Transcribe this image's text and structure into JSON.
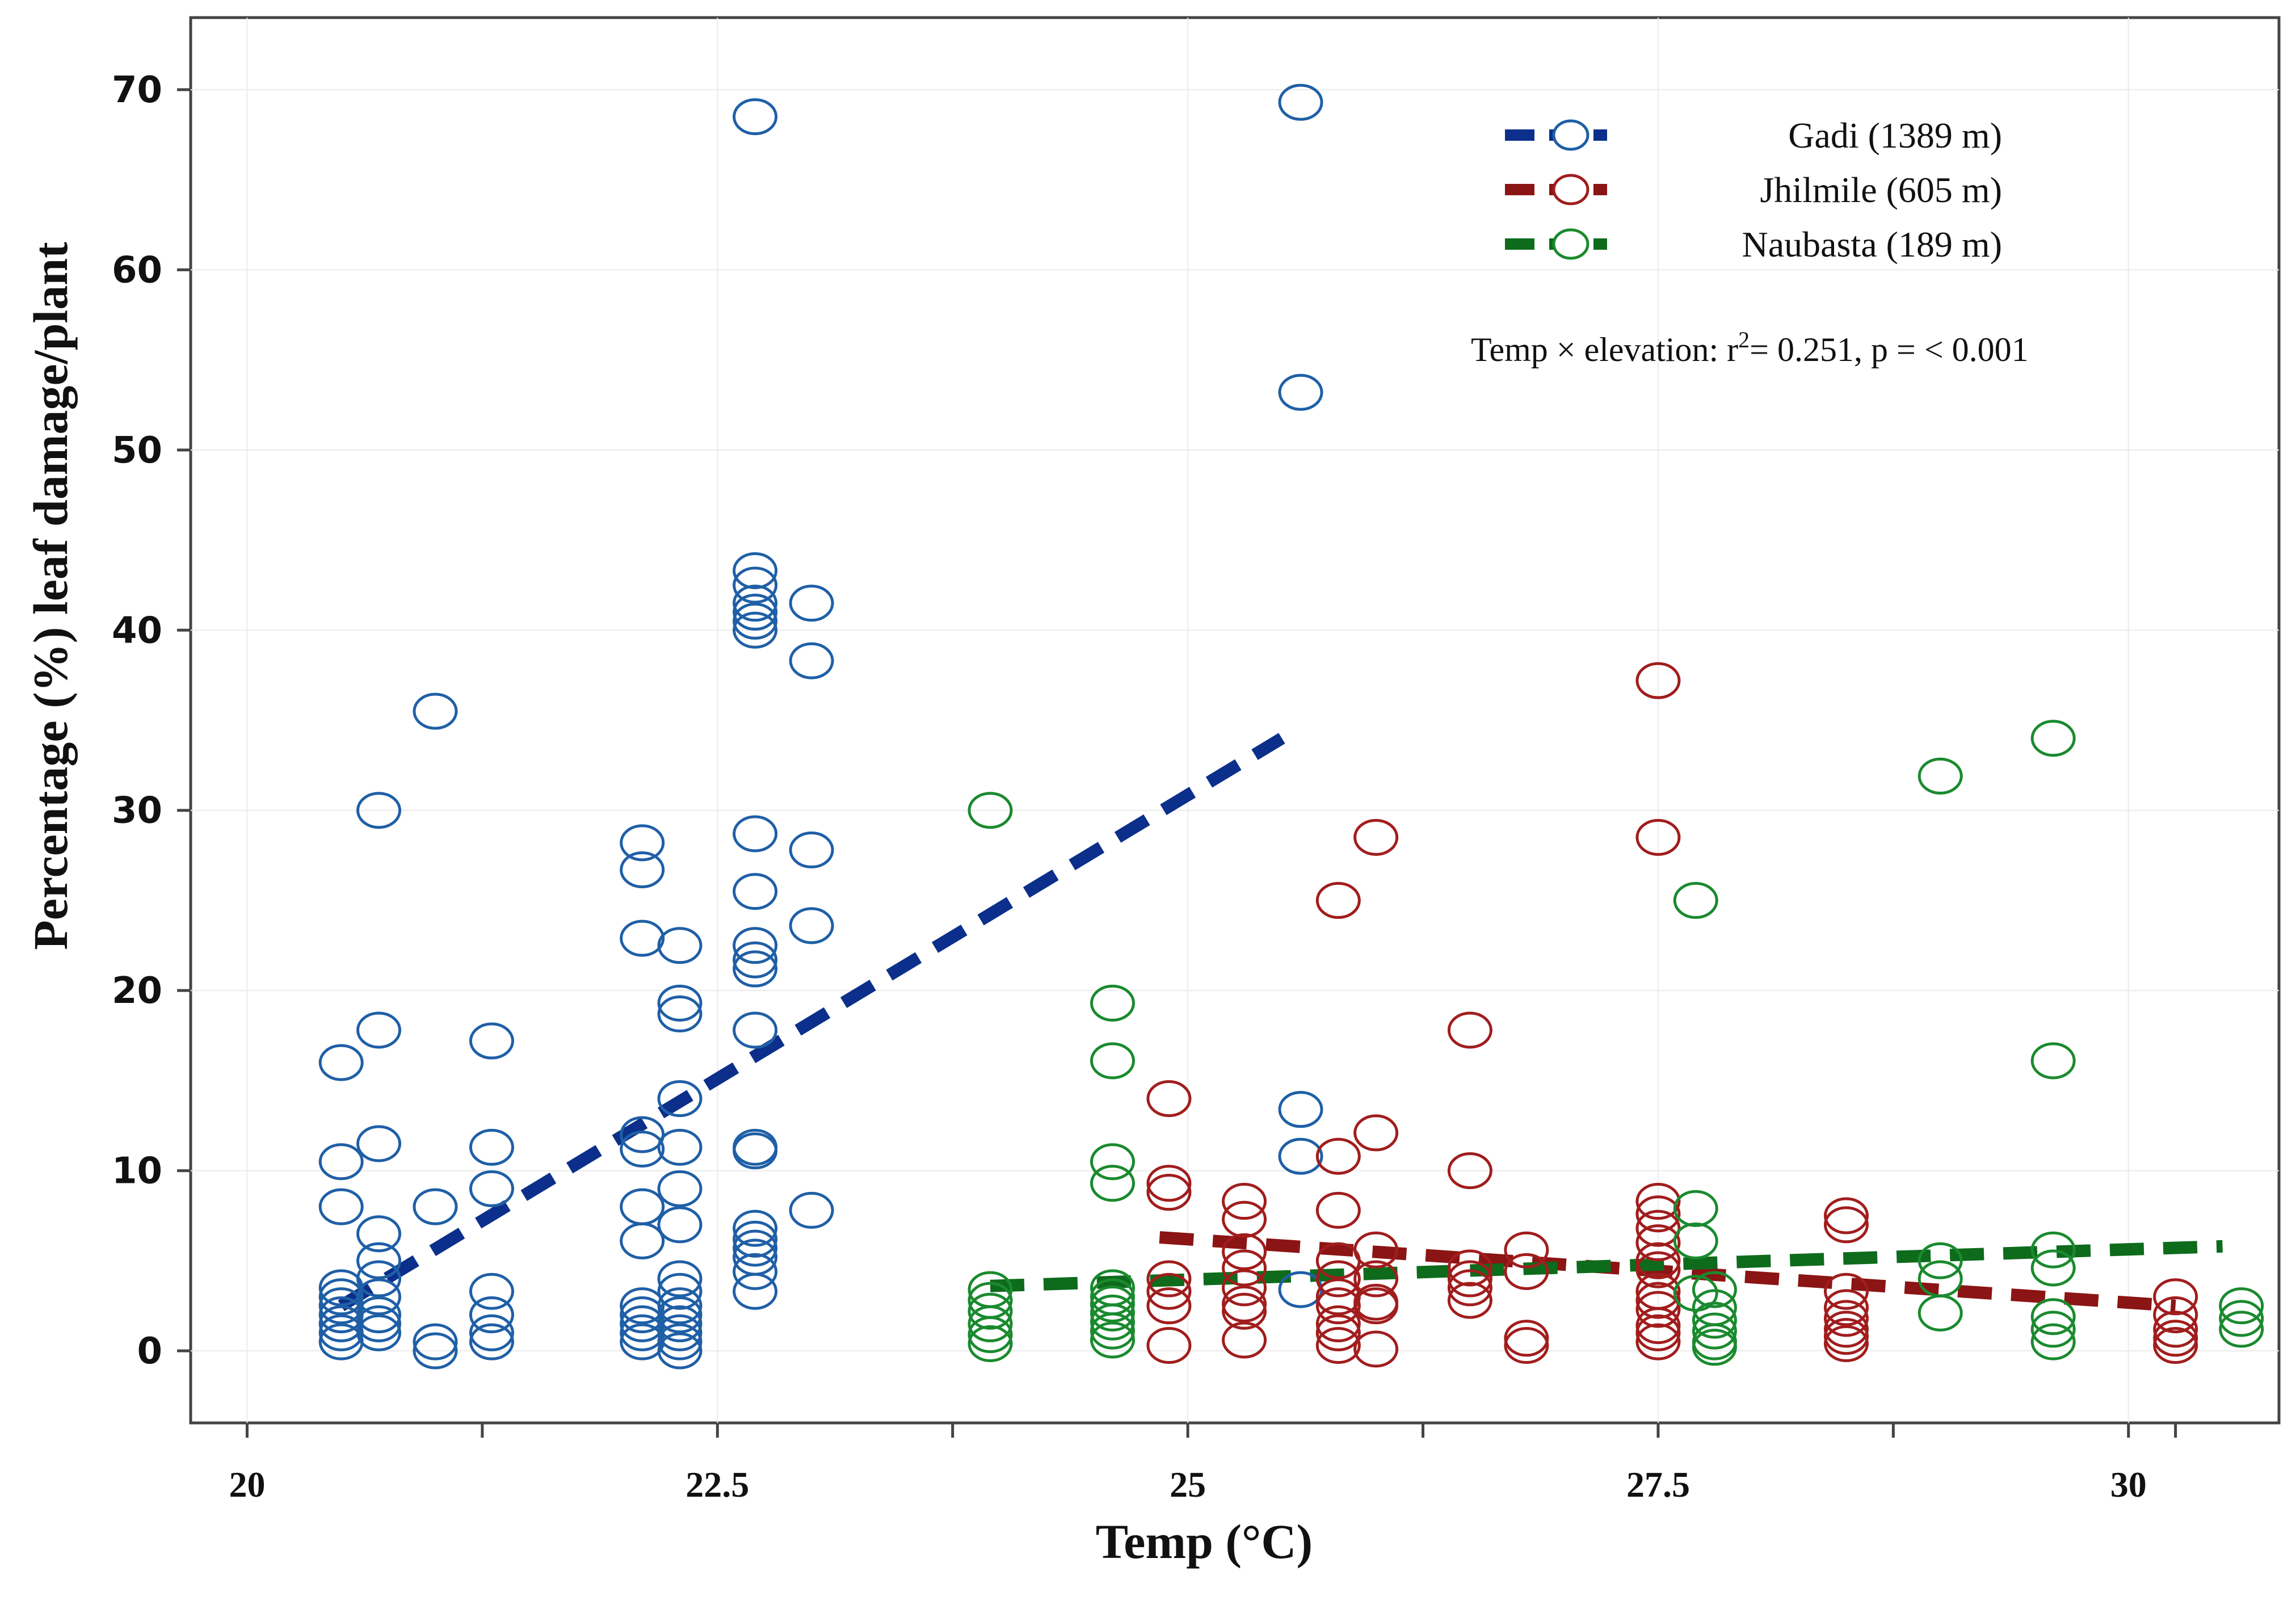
{
  "chart_data": {
    "type": "scatter",
    "xlabel": "Temp (°C)",
    "ylabel": "Percentage (%) leaf damage/plant",
    "xlim": [
      19.7,
      30.8
    ],
    "ylim": [
      -4,
      74
    ],
    "x_ticks": [
      20,
      22.5,
      25,
      27.5,
      30
    ],
    "x_tick_labels": [
      "20",
      "22.5",
      "25",
      "27.5",
      "30"
    ],
    "x_minor_ticks": [
      21.25,
      23.75,
      26.25,
      28.75,
      30.25
    ],
    "y_ticks": [
      0,
      10,
      20,
      30,
      40,
      50,
      60,
      70
    ],
    "y_tick_labels": [
      "0",
      "10",
      "20",
      "30",
      "40",
      "50",
      "60",
      "70"
    ],
    "legend_position": "top-right",
    "annotation": "Temp × elevation: r²= 0.251, p = < 0.001",
    "series": [
      {
        "name": "Gadi (1389 m)",
        "color": "#1f5fa6",
        "line_color": "#0b2f8a",
        "trend": {
          "x": [
            20.5,
            25.5
          ],
          "y": [
            2.5,
            34
          ]
        },
        "points": [
          [
            20.5,
            16
          ],
          [
            20.5,
            10.5
          ],
          [
            20.5,
            8
          ],
          [
            20.5,
            3.5
          ],
          [
            20.5,
            3
          ],
          [
            20.5,
            2.5
          ],
          [
            20.5,
            2
          ],
          [
            20.5,
            1.5
          ],
          [
            20.5,
            1
          ],
          [
            20.5,
            0.5
          ],
          [
            20.7,
            30
          ],
          [
            20.7,
            17.8
          ],
          [
            20.7,
            11.5
          ],
          [
            20.7,
            6.5
          ],
          [
            20.7,
            5
          ],
          [
            20.7,
            4
          ],
          [
            20.7,
            3
          ],
          [
            20.7,
            2
          ],
          [
            20.7,
            1.5
          ],
          [
            20.7,
            1
          ],
          [
            21.0,
            35.5
          ],
          [
            21.0,
            8
          ],
          [
            21.0,
            0.5
          ],
          [
            21.0,
            0
          ],
          [
            21.3,
            17.2
          ],
          [
            21.3,
            11.3
          ],
          [
            21.3,
            9
          ],
          [
            21.3,
            3.3
          ],
          [
            21.3,
            2
          ],
          [
            21.3,
            1
          ],
          [
            21.3,
            0.5
          ],
          [
            22.1,
            28.2
          ],
          [
            22.1,
            26.7
          ],
          [
            22.1,
            22.9
          ],
          [
            22.1,
            12
          ],
          [
            22.1,
            11.2
          ],
          [
            22.1,
            8
          ],
          [
            22.1,
            6.1
          ],
          [
            22.1,
            2.5
          ],
          [
            22.1,
            2
          ],
          [
            22.1,
            1.5
          ],
          [
            22.1,
            1
          ],
          [
            22.1,
            0.5
          ],
          [
            22.3,
            22.5
          ],
          [
            22.3,
            19.3
          ],
          [
            22.3,
            18.7
          ],
          [
            22.3,
            14
          ],
          [
            22.3,
            11.3
          ],
          [
            22.3,
            9
          ],
          [
            22.3,
            7
          ],
          [
            22.3,
            4
          ],
          [
            22.3,
            3.3
          ],
          [
            22.3,
            2.5
          ],
          [
            22.3,
            2
          ],
          [
            22.3,
            1.5
          ],
          [
            22.3,
            1
          ],
          [
            22.3,
            0.5
          ],
          [
            22.3,
            0
          ],
          [
            22.7,
            68.5
          ],
          [
            22.7,
            43.3
          ],
          [
            22.7,
            42.5
          ],
          [
            22.7,
            41.5
          ],
          [
            22.7,
            41
          ],
          [
            22.7,
            40.5
          ],
          [
            22.7,
            40
          ],
          [
            22.7,
            28.7
          ],
          [
            22.7,
            25.5
          ],
          [
            22.7,
            22.5
          ],
          [
            22.7,
            21.7
          ],
          [
            22.7,
            21.2
          ],
          [
            22.7,
            17.8
          ],
          [
            22.7,
            11.3
          ],
          [
            22.7,
            11.1
          ],
          [
            22.7,
            6.8
          ],
          [
            22.7,
            6.2
          ],
          [
            22.7,
            5.7
          ],
          [
            22.7,
            5.2
          ],
          [
            22.7,
            4.4
          ],
          [
            22.7,
            3.3
          ],
          [
            23.0,
            41.5
          ],
          [
            23.0,
            38.3
          ],
          [
            23.0,
            27.8
          ],
          [
            23.0,
            23.6
          ],
          [
            23.0,
            7.8
          ],
          [
            25.6,
            69.3
          ],
          [
            25.6,
            53.2
          ],
          [
            25.6,
            13.4
          ],
          [
            25.6,
            10.8
          ],
          [
            25.6,
            3.4
          ]
        ]
      },
      {
        "name": "Jhilmile (605 m)",
        "color": "#a11d1d",
        "line_color": "#8b1414",
        "trend": {
          "x": [
            24.85,
            30.25
          ],
          "y": [
            6.3,
            2.5
          ]
        },
        "points": [
          [
            24.9,
            14
          ],
          [
            24.9,
            9.3
          ],
          [
            24.9,
            8.8
          ],
          [
            24.9,
            4
          ],
          [
            24.9,
            3.3
          ],
          [
            24.9,
            2.5
          ],
          [
            24.9,
            0.3
          ],
          [
            25.3,
            8.3
          ],
          [
            25.3,
            7.3
          ],
          [
            25.3,
            5.5
          ],
          [
            25.3,
            4.6
          ],
          [
            25.3,
            3.5
          ],
          [
            25.3,
            2.6
          ],
          [
            25.3,
            2.2
          ],
          [
            25.3,
            0.6
          ],
          [
            25.8,
            25
          ],
          [
            25.8,
            10.8
          ],
          [
            25.8,
            7.8
          ],
          [
            25.8,
            5
          ],
          [
            25.8,
            4
          ],
          [
            25.8,
            3
          ],
          [
            25.8,
            2.5
          ],
          [
            25.8,
            1.5
          ],
          [
            25.8,
            1
          ],
          [
            25.8,
            0.3
          ],
          [
            26.0,
            28.5
          ],
          [
            26.0,
            12.1
          ],
          [
            26.0,
            5.6
          ],
          [
            26.0,
            4
          ],
          [
            26.0,
            2.7
          ],
          [
            26.0,
            2.5
          ],
          [
            26.0,
            0.1
          ],
          [
            26.5,
            17.8
          ],
          [
            26.5,
            10
          ],
          [
            26.5,
            4.6
          ],
          [
            26.5,
            4
          ],
          [
            26.5,
            3.5
          ],
          [
            26.5,
            2.8
          ],
          [
            26.8,
            5.6
          ],
          [
            26.8,
            4.4
          ],
          [
            26.8,
            0.7
          ],
          [
            26.8,
            0.3
          ],
          [
            27.5,
            37.2
          ],
          [
            27.5,
            28.5
          ],
          [
            27.5,
            8.3
          ],
          [
            27.5,
            7.6
          ],
          [
            27.5,
            6.8
          ],
          [
            27.5,
            6
          ],
          [
            27.5,
            5
          ],
          [
            27.5,
            4.5
          ],
          [
            27.5,
            3.3
          ],
          [
            27.5,
            2.8
          ],
          [
            27.5,
            2.3
          ],
          [
            27.5,
            1.4
          ],
          [
            27.5,
            1
          ],
          [
            27.5,
            0.5
          ],
          [
            28.5,
            7.5
          ],
          [
            28.5,
            7
          ],
          [
            28.5,
            3.3
          ],
          [
            28.5,
            2.4
          ],
          [
            28.5,
            1.8
          ],
          [
            28.5,
            1.2
          ],
          [
            28.5,
            0.8
          ],
          [
            28.5,
            0.4
          ],
          [
            30.25,
            3
          ],
          [
            30.25,
            2
          ],
          [
            30.25,
            1.2
          ],
          [
            30.25,
            0.7
          ],
          [
            30.25,
            0.3
          ]
        ]
      },
      {
        "name": "Naubasta (189 m)",
        "color": "#1a8a2e",
        "line_color": "#0e6b1c",
        "trend": {
          "x": [
            23.95,
            30.5
          ],
          "y": [
            3.6,
            5.8
          ]
        },
        "points": [
          [
            23.95,
            30
          ],
          [
            23.95,
            3.4
          ],
          [
            23.95,
            2.8
          ],
          [
            23.95,
            2.2
          ],
          [
            23.95,
            1.5
          ],
          [
            23.95,
            0.9
          ],
          [
            23.95,
            0.4
          ],
          [
            24.6,
            19.3
          ],
          [
            24.6,
            16.1
          ],
          [
            24.6,
            10.5
          ],
          [
            24.6,
            9.3
          ],
          [
            24.6,
            3.5
          ],
          [
            24.6,
            3
          ],
          [
            24.6,
            2.6
          ],
          [
            24.6,
            2.1
          ],
          [
            24.6,
            1.6
          ],
          [
            24.6,
            1.1
          ],
          [
            24.6,
            0.6
          ],
          [
            27.7,
            25
          ],
          [
            27.7,
            7.9
          ],
          [
            27.7,
            6.1
          ],
          [
            27.7,
            3.2
          ],
          [
            27.8,
            3.4
          ],
          [
            27.8,
            2.4
          ],
          [
            27.8,
            1.7
          ],
          [
            27.8,
            1.1
          ],
          [
            27.8,
            0.5
          ],
          [
            27.8,
            0.2
          ],
          [
            29.0,
            31.9
          ],
          [
            29.0,
            5
          ],
          [
            29.0,
            4
          ],
          [
            29.0,
            2.1
          ],
          [
            29.6,
            34
          ],
          [
            29.6,
            16.1
          ],
          [
            29.6,
            5.6
          ],
          [
            29.6,
            4.6
          ],
          [
            29.6,
            1.9
          ],
          [
            29.6,
            1.2
          ],
          [
            29.6,
            0.5
          ],
          [
            30.6,
            2.5
          ],
          [
            30.6,
            1.8
          ],
          [
            30.6,
            1.2
          ]
        ]
      }
    ]
  }
}
